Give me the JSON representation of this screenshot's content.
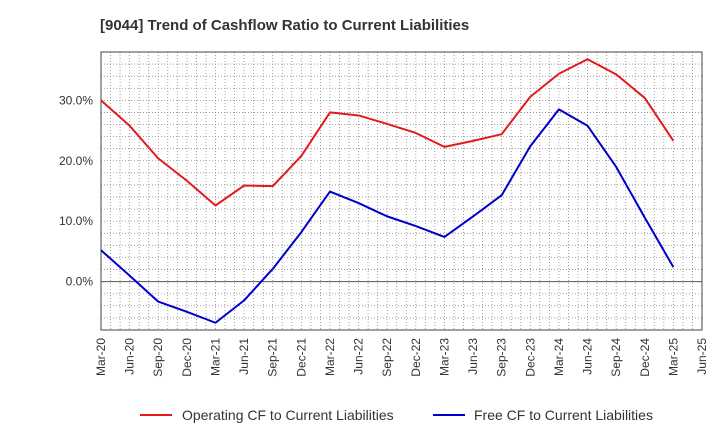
{
  "chart_data": {
    "type": "line",
    "title": "[9044]  Trend of Cashflow Ratio to Current Liabilities",
    "xlabel": "",
    "ylabel": "",
    "x": [
      "Mar-20",
      "Jun-20",
      "Sep-20",
      "Dec-20",
      "Mar-21",
      "Jun-21",
      "Sep-21",
      "Dec-21",
      "Mar-22",
      "Jun-22",
      "Sep-22",
      "Dec-22",
      "Mar-23",
      "Jun-23",
      "Sep-23",
      "Dec-23",
      "Mar-24",
      "Jun-24",
      "Sep-24",
      "Dec-24",
      "Mar-25",
      "Jun-25"
    ],
    "ylim": [
      -8,
      38
    ],
    "yticks": [
      0,
      10,
      20,
      30
    ],
    "ytick_labels": [
      "0.0%",
      "10.0%",
      "20.0%",
      "30.0%"
    ],
    "grid": true,
    "legend_position": "bottom",
    "series": [
      {
        "name": "Operating CF to Current Liabilities",
        "color": "#e31a1c",
        "values": [
          30.0,
          25.8,
          20.4,
          16.7,
          12.6,
          15.9,
          15.8,
          20.8,
          28.0,
          27.5,
          26.1,
          24.6,
          22.3,
          23.3,
          24.4,
          30.6,
          34.4,
          36.8,
          34.3,
          30.4,
          23.3,
          null
        ]
      },
      {
        "name": "Free CF to Current Liabilities",
        "color": "#0000cc",
        "values": [
          5.2,
          1.0,
          -3.3,
          -5.0,
          -6.8,
          -3.1,
          2.1,
          8.2,
          14.9,
          13.0,
          10.8,
          9.2,
          7.4,
          10.8,
          14.3,
          22.4,
          28.5,
          25.8,
          19.0,
          10.6,
          2.4,
          null
        ]
      }
    ]
  }
}
